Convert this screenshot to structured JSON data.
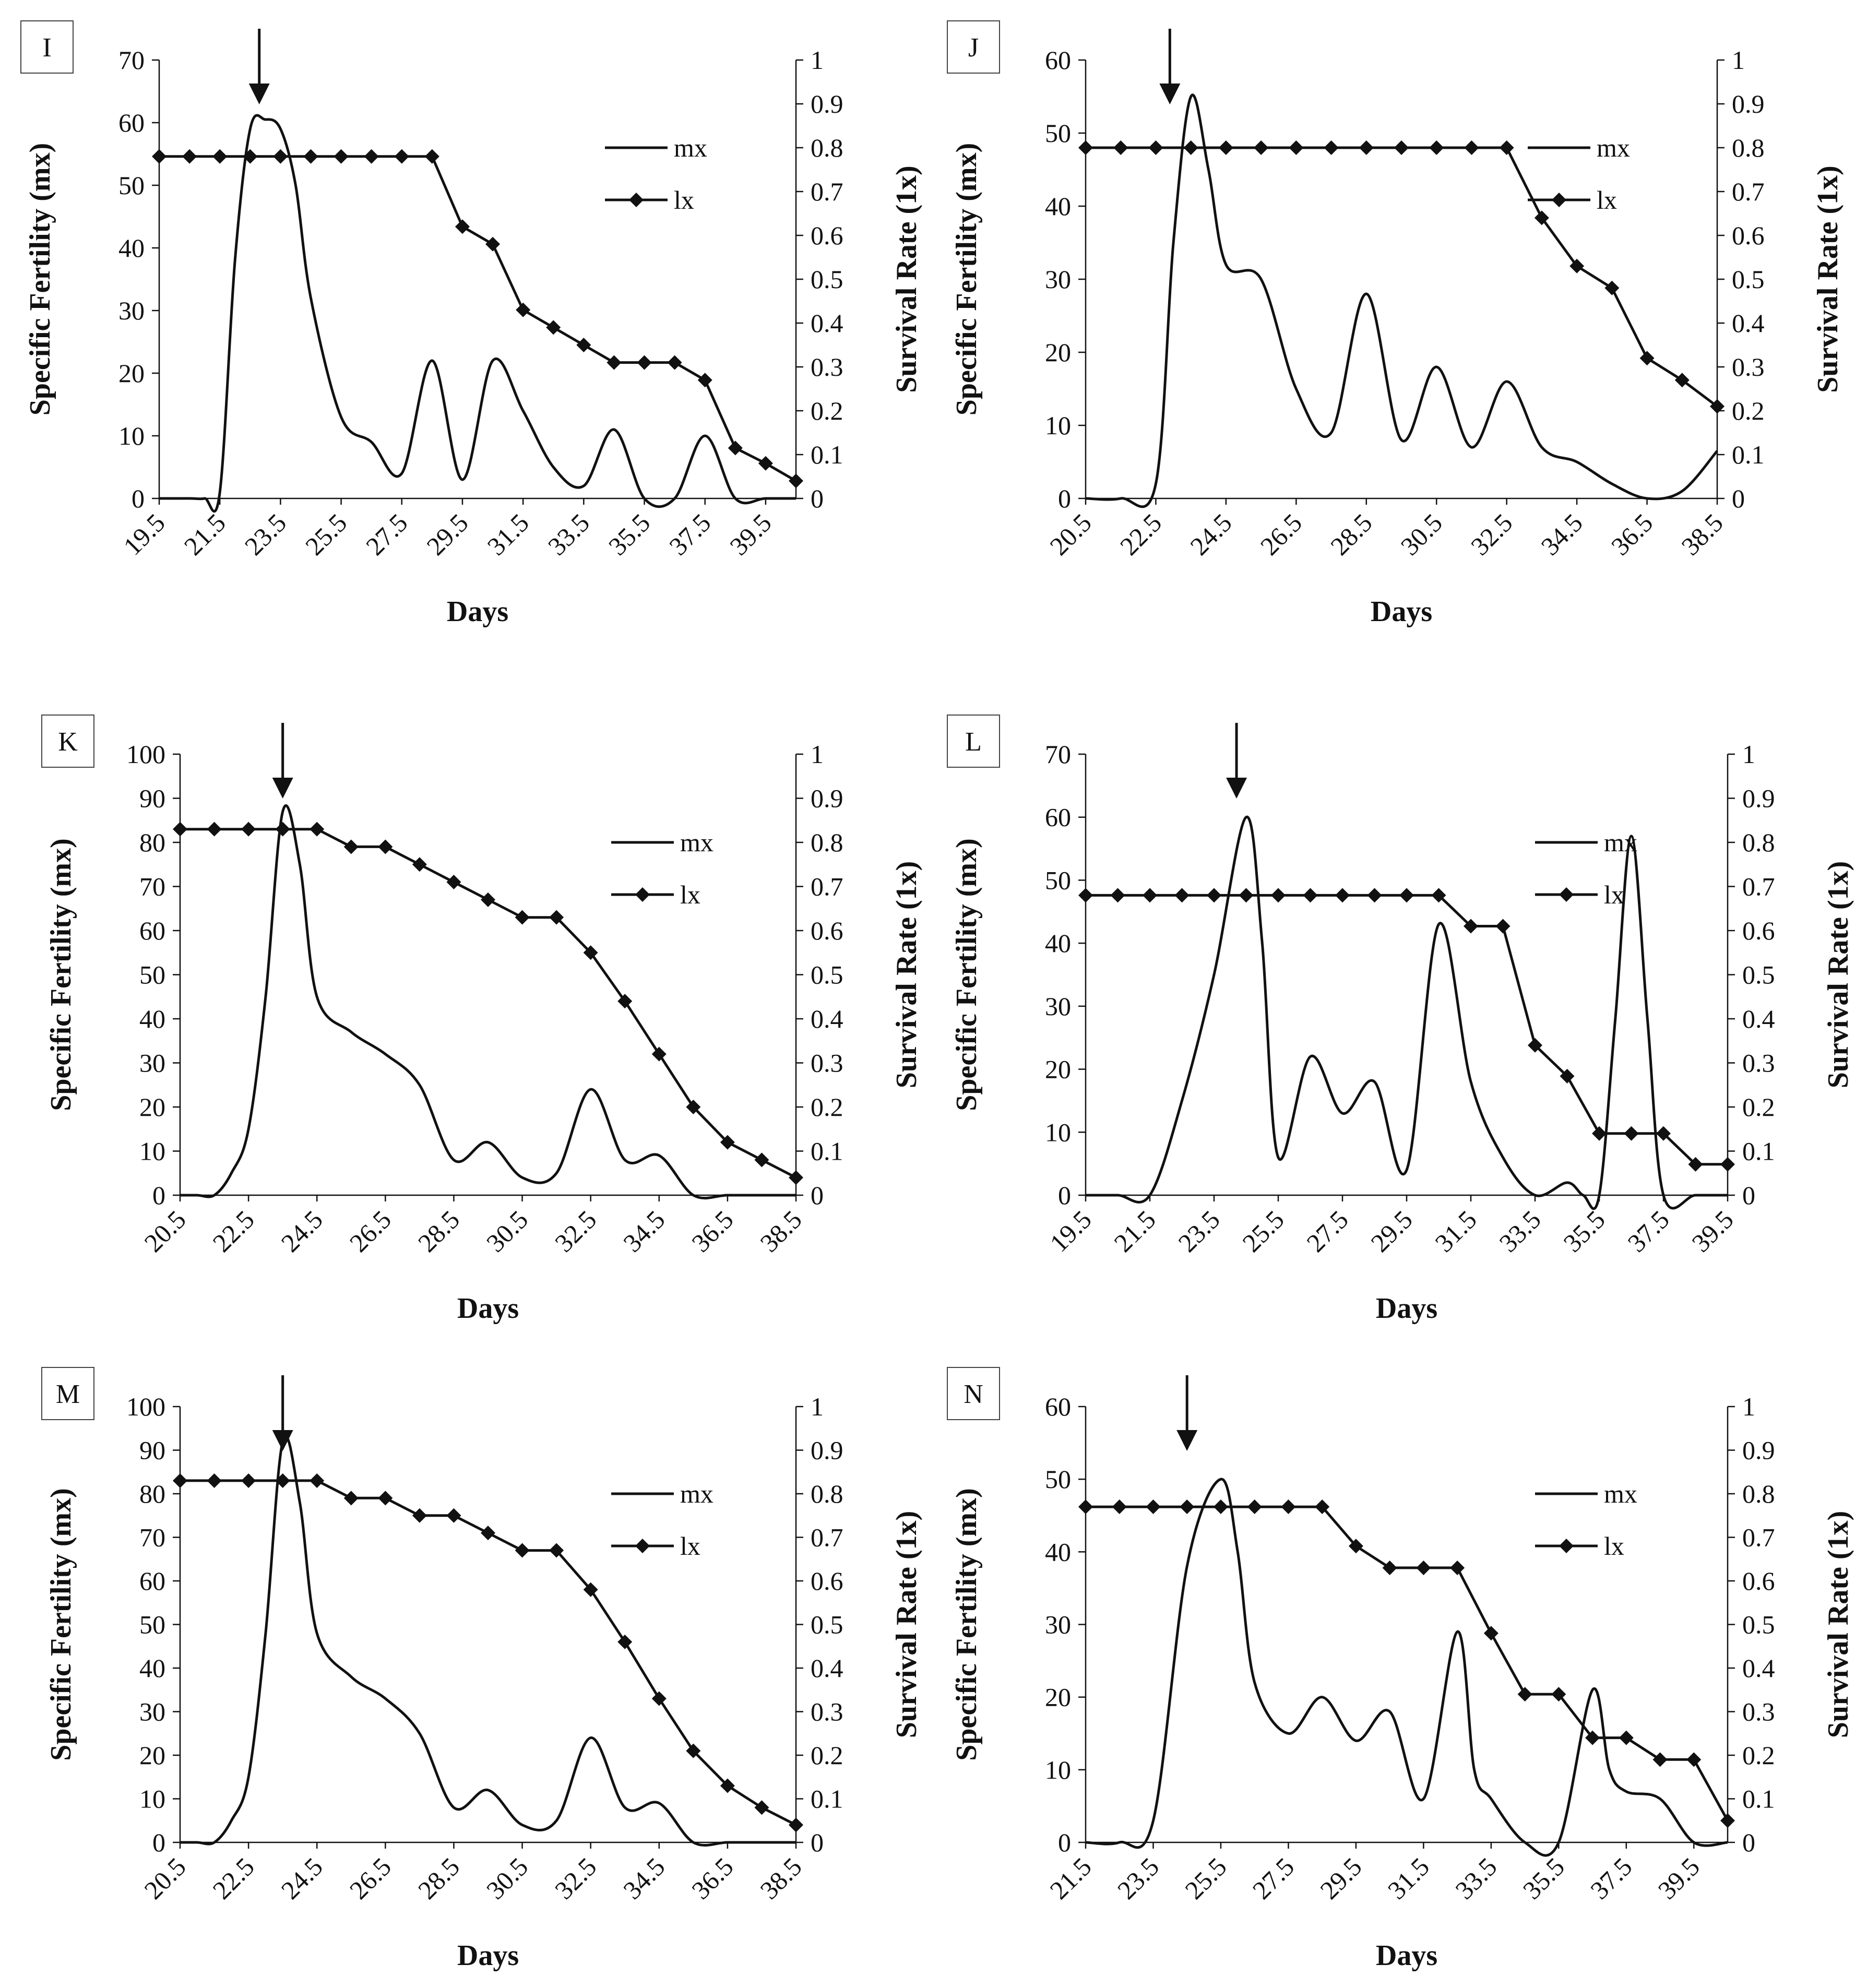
{
  "figure": {
    "line_color": "#111111",
    "background": "#ffffff"
  },
  "chart_data": [
    {
      "panel": "I",
      "type": "line",
      "xlabel": "Days",
      "ylabel_left": "Specific Fertility (mx)",
      "ylabel_right": "Survival Rate (1x)",
      "x_tick_labels": [
        "19.5",
        "21.5",
        "23.5",
        "25.5",
        "27.5",
        "29.5",
        "31.5",
        "33.5",
        "35.5",
        "37.5",
        "39.5"
      ],
      "xlim": [
        19.5,
        40.5
      ],
      "ylim_left": [
        0,
        70
      ],
      "y_ticks_left": [
        0,
        10,
        20,
        30,
        40,
        50,
        60,
        70
      ],
      "ylim_right": [
        0,
        1
      ],
      "y_ticks_right": [
        0,
        0.1,
        0.2,
        0.3,
        0.4,
        0.5,
        0.6,
        0.7,
        0.8,
        0.9,
        1
      ],
      "legend": [
        "mx",
        "lx"
      ],
      "arrow_at": 22.8,
      "series": [
        {
          "name": "mx",
          "axis": "left",
          "smooth": true,
          "x": [
            19.5,
            20.5,
            21.0,
            21.5,
            22.0,
            22.5,
            23.0,
            23.5,
            24.0,
            24.5,
            25.5,
            26.5,
            27.5,
            28.5,
            29.5,
            30.5,
            31.5,
            32.5,
            33.5,
            34.5,
            35.5,
            36.5,
            37.5,
            38.5,
            39.5,
            40.5
          ],
          "y": [
            0,
            0,
            0,
            1,
            38,
            59,
            60.5,
            59,
            50,
            32,
            13,
            9,
            4,
            22,
            3,
            22,
            14,
            5,
            2,
            11,
            0,
            0,
            10,
            0,
            0,
            0
          ]
        },
        {
          "name": "lx",
          "axis": "right",
          "markers": true,
          "x": [
            19.5,
            20.5,
            21.5,
            22.5,
            23.5,
            24.5,
            25.5,
            26.5,
            27.5,
            28.5,
            29.5,
            30.5,
            31.5,
            32.5,
            33.5,
            34.5,
            35.5,
            36.5,
            37.5,
            38.5,
            39.5,
            40.5
          ],
          "y": [
            0.78,
            0.78,
            0.78,
            0.78,
            0.78,
            0.78,
            0.78,
            0.78,
            0.78,
            0.78,
            0.62,
            0.58,
            0.43,
            0.39,
            0.35,
            0.31,
            0.31,
            0.31,
            0.27,
            0.115,
            0.08,
            0.04
          ]
        }
      ]
    },
    {
      "panel": "J",
      "type": "line",
      "xlabel": "Days",
      "ylabel_left": "Specific Fertility (mx)",
      "ylabel_right": "Survival Rate (1x)",
      "x_tick_labels": [
        "20.5",
        "22.5",
        "24.5",
        "26.5",
        "28.5",
        "30.5",
        "32.5",
        "34.5",
        "36.5",
        "38.5"
      ],
      "xlim": [
        20.5,
        38.5
      ],
      "ylim_left": [
        0,
        60
      ],
      "y_ticks_left": [
        0,
        10,
        20,
        30,
        40,
        50,
        60
      ],
      "ylim_right": [
        0,
        1
      ],
      "y_ticks_right": [
        0,
        0.1,
        0.2,
        0.3,
        0.4,
        0.5,
        0.6,
        0.7,
        0.8,
        0.9,
        1
      ],
      "legend": [
        "mx",
        "lx"
      ],
      "arrow_at": 22.9,
      "series": [
        {
          "name": "mx",
          "axis": "left",
          "smooth": true,
          "x": [
            20.5,
            21.5,
            22.5,
            23.0,
            23.5,
            24.0,
            24.5,
            25.5,
            26.5,
            27.5,
            28.5,
            29.5,
            30.5,
            31.5,
            32.5,
            33.5,
            34.5,
            35.5,
            36.5,
            37.5,
            38.5
          ],
          "y": [
            0,
            0,
            2,
            35,
            55,
            45,
            32,
            30,
            15,
            9,
            28,
            8,
            18,
            7,
            16,
            7,
            5,
            2,
            0,
            1,
            6.5
          ]
        },
        {
          "name": "lx",
          "axis": "right",
          "markers": true,
          "x": [
            20.5,
            21.5,
            22.5,
            23.5,
            24.5,
            25.5,
            26.5,
            27.5,
            28.5,
            29.5,
            30.5,
            31.5,
            32.5,
            33.5,
            34.5,
            35.5,
            36.5,
            37.5,
            38.5
          ],
          "y": [
            0.8,
            0.8,
            0.8,
            0.8,
            0.8,
            0.8,
            0.8,
            0.8,
            0.8,
            0.8,
            0.8,
            0.8,
            0.8,
            0.64,
            0.53,
            0.48,
            0.32,
            0.27,
            0.21
          ]
        }
      ]
    },
    {
      "panel": "K",
      "type": "line",
      "xlabel": "Days",
      "ylabel_left": "Specific Fertility (mx)",
      "ylabel_right": "Survival Rate (1x)",
      "x_tick_labels": [
        "20.5",
        "22.5",
        "24.5",
        "26.5",
        "28.5",
        "30.5",
        "32.5",
        "34.5",
        "36.5",
        "38.5"
      ],
      "xlim": [
        20.5,
        38.5
      ],
      "ylim_left": [
        0,
        100
      ],
      "y_ticks_left": [
        0,
        10,
        20,
        30,
        40,
        50,
        60,
        70,
        80,
        90,
        100
      ],
      "ylim_right": [
        0,
        1
      ],
      "y_ticks_right": [
        0,
        0.1,
        0.2,
        0.3,
        0.4,
        0.5,
        0.6,
        0.7,
        0.8,
        0.9,
        1
      ],
      "legend": [
        "mx",
        "lx"
      ],
      "arrow_at": 23.5,
      "series": [
        {
          "name": "mx",
          "axis": "left",
          "smooth": true,
          "x": [
            20.5,
            21.0,
            21.5,
            22.0,
            22.5,
            23.0,
            23.5,
            24.0,
            24.5,
            25.5,
            26.5,
            27.5,
            28.5,
            29.5,
            30.5,
            31.5,
            32.5,
            33.5,
            34.5,
            35.5,
            36.5,
            37.5,
            38.5
          ],
          "y": [
            0,
            0,
            0,
            5,
            15,
            45,
            87,
            75,
            45,
            37,
            32,
            25,
            8,
            12,
            4,
            5,
            24,
            8,
            9,
            0,
            0,
            0,
            0
          ]
        },
        {
          "name": "lx",
          "axis": "right",
          "markers": true,
          "x": [
            20.5,
            21.5,
            22.5,
            23.5,
            24.5,
            25.5,
            26.5,
            27.5,
            28.5,
            29.5,
            30.5,
            31.5,
            32.5,
            33.5,
            34.5,
            35.5,
            36.5,
            37.5,
            38.5
          ],
          "y": [
            0.83,
            0.83,
            0.83,
            0.83,
            0.83,
            0.79,
            0.79,
            0.75,
            0.71,
            0.67,
            0.63,
            0.63,
            0.55,
            0.44,
            0.32,
            0.2,
            0.12,
            0.08,
            0.04
          ]
        }
      ]
    },
    {
      "panel": "L",
      "type": "line",
      "xlabel": "Days",
      "ylabel_left": "Specific Fertility (mx)",
      "ylabel_right": "Survival Rate (1x)",
      "x_tick_labels": [
        "19.5",
        "21.5",
        "23.5",
        "25.5",
        "27.5",
        "29.5",
        "31.5",
        "33.5",
        "35.5",
        "37.5",
        "39.5"
      ],
      "xlim": [
        19.5,
        39.5
      ],
      "ylim_left": [
        0,
        70
      ],
      "y_ticks_left": [
        0,
        10,
        20,
        30,
        40,
        50,
        60,
        70
      ],
      "ylim_right": [
        0,
        1
      ],
      "y_ticks_right": [
        0,
        0.1,
        0.2,
        0.3,
        0.4,
        0.5,
        0.6,
        0.7,
        0.8,
        0.9,
        1
      ],
      "legend": [
        "mx",
        "lx"
      ],
      "arrow_at": 24.2,
      "series": [
        {
          "name": "mx",
          "axis": "left",
          "smooth": true,
          "x": [
            19.5,
            20.5,
            21.5,
            22.5,
            23.5,
            24.5,
            25.0,
            25.5,
            26.5,
            27.5,
            28.5,
            29.5,
            30.5,
            31.5,
            32.5,
            33.5,
            34.5,
            35.0,
            35.5,
            36.0,
            36.5,
            37.0,
            37.5,
            38.5,
            39.5
          ],
          "y": [
            0,
            0,
            0,
            15,
            35,
            60,
            40,
            6,
            22,
            13,
            18,
            4,
            43,
            18,
            6,
            0,
            2,
            0,
            0,
            28,
            57,
            28,
            0,
            0,
            0
          ]
        },
        {
          "name": "lx",
          "axis": "right",
          "markers": true,
          "x": [
            19.5,
            20.5,
            21.5,
            22.5,
            23.5,
            24.5,
            25.5,
            26.5,
            27.5,
            28.5,
            29.5,
            30.5,
            31.5,
            32.5,
            33.5,
            34.5,
            35.5,
            36.5,
            37.5,
            38.5,
            39.5
          ],
          "y": [
            0.68,
            0.68,
            0.68,
            0.68,
            0.68,
            0.68,
            0.68,
            0.68,
            0.68,
            0.68,
            0.68,
            0.68,
            0.61,
            0.61,
            0.34,
            0.27,
            0.14,
            0.14,
            0.14,
            0.07,
            0.07
          ]
        }
      ]
    },
    {
      "panel": "M",
      "type": "line",
      "xlabel": "Days",
      "ylabel_left": "Specific Fertility (mx)",
      "ylabel_right": "Survival Rate (1x)",
      "x_tick_labels": [
        "20.5",
        "22.5",
        "24.5",
        "26.5",
        "28.5",
        "30.5",
        "32.5",
        "34.5",
        "36.5",
        "38.5"
      ],
      "xlim": [
        20.5,
        38.5
      ],
      "ylim_left": [
        0,
        100
      ],
      "y_ticks_left": [
        0,
        10,
        20,
        30,
        40,
        50,
        60,
        70,
        80,
        90,
        100
      ],
      "ylim_right": [
        0,
        1
      ],
      "y_ticks_right": [
        0,
        0.1,
        0.2,
        0.3,
        0.4,
        0.5,
        0.6,
        0.7,
        0.8,
        0.9,
        1
      ],
      "legend": [
        "mx",
        "lx"
      ],
      "arrow_at": 23.5,
      "series": [
        {
          "name": "mx",
          "axis": "left",
          "smooth": true,
          "x": [
            20.5,
            21.0,
            21.5,
            22.0,
            22.5,
            23.0,
            23.5,
            24.0,
            24.5,
            25.5,
            26.5,
            27.5,
            28.5,
            29.5,
            30.5,
            31.5,
            32.5,
            33.5,
            34.5,
            35.5,
            36.5,
            37.5,
            38.5
          ],
          "y": [
            0,
            0,
            0,
            5,
            15,
            48,
            92,
            78,
            48,
            38,
            33,
            25,
            8,
            12,
            4,
            5,
            24,
            8,
            9,
            0,
            0,
            0,
            0
          ]
        },
        {
          "name": "lx",
          "axis": "right",
          "markers": true,
          "x": [
            20.5,
            21.5,
            22.5,
            23.5,
            24.5,
            25.5,
            26.5,
            27.5,
            28.5,
            29.5,
            30.5,
            31.5,
            32.5,
            33.5,
            34.5,
            35.5,
            36.5,
            37.5,
            38.5
          ],
          "y": [
            0.83,
            0.83,
            0.83,
            0.83,
            0.83,
            0.79,
            0.79,
            0.75,
            0.75,
            0.71,
            0.67,
            0.67,
            0.58,
            0.46,
            0.33,
            0.21,
            0.13,
            0.08,
            0.04
          ]
        }
      ]
    },
    {
      "panel": "N",
      "type": "line",
      "xlabel": "Days",
      "ylabel_left": "Specific Fertility (mx)",
      "ylabel_right": "Survival Rate (1x)",
      "x_tick_labels": [
        "21.5",
        "23.5",
        "25.5",
        "27.5",
        "29.5",
        "31.5",
        "33.5",
        "35.5",
        "37.5",
        "39.5"
      ],
      "xlim": [
        21.5,
        40.5
      ],
      "ylim_left": [
        0,
        60
      ],
      "y_ticks_left": [
        0,
        10,
        20,
        30,
        40,
        50,
        60
      ],
      "ylim_right": [
        0,
        1
      ],
      "y_ticks_right": [
        0,
        0.1,
        0.2,
        0.3,
        0.4,
        0.5,
        0.6,
        0.7,
        0.8,
        0.9,
        1
      ],
      "legend": [
        "mx",
        "lx"
      ],
      "arrow_at": 24.5,
      "series": [
        {
          "name": "mx",
          "axis": "left",
          "smooth": true,
          "x": [
            21.5,
            22.5,
            23.5,
            24.5,
            25.5,
            26.0,
            26.5,
            27.5,
            28.5,
            29.5,
            30.5,
            31.5,
            32.5,
            33.0,
            33.5,
            34.5,
            35.5,
            36.5,
            37.0,
            37.5,
            38.5,
            39.5,
            40.5
          ],
          "y": [
            0,
            0,
            3,
            38,
            50,
            40,
            22,
            15,
            20,
            14,
            18,
            6,
            29,
            10,
            6,
            0,
            0,
            21,
            10,
            7,
            6,
            0,
            0
          ]
        },
        {
          "name": "lx",
          "axis": "right",
          "markers": true,
          "x": [
            21.5,
            22.5,
            23.5,
            24.5,
            25.5,
            26.5,
            27.5,
            28.5,
            29.5,
            30.5,
            31.5,
            32.5,
            33.5,
            34.5,
            35.5,
            36.5,
            37.5,
            38.5,
            39.5,
            40.5
          ],
          "y": [
            0.77,
            0.77,
            0.77,
            0.77,
            0.77,
            0.77,
            0.77,
            0.77,
            0.68,
            0.63,
            0.63,
            0.63,
            0.48,
            0.34,
            0.34,
            0.24,
            0.24,
            0.19,
            0.19,
            0.05
          ]
        }
      ]
    }
  ]
}
